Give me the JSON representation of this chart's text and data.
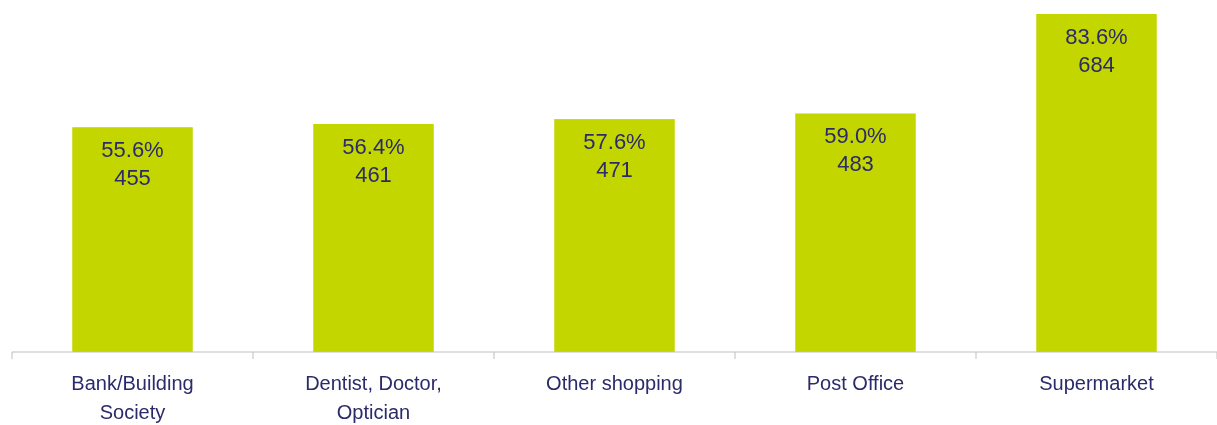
{
  "chart_data": {
    "type": "bar",
    "categories": [
      "Bank/Building Society",
      "Dentist, Doctor, Optician",
      "Other shopping",
      "Post Office",
      "Supermarket"
    ],
    "values": [
      55.6,
      56.4,
      57.6,
      59.0,
      83.6
    ],
    "value_labels": [
      "55.6%\n455",
      "56.4%\n461",
      "57.6%\n471",
      "59.0%\n483",
      "83.6%\n684"
    ],
    "color": "#c4d600"
  }
}
